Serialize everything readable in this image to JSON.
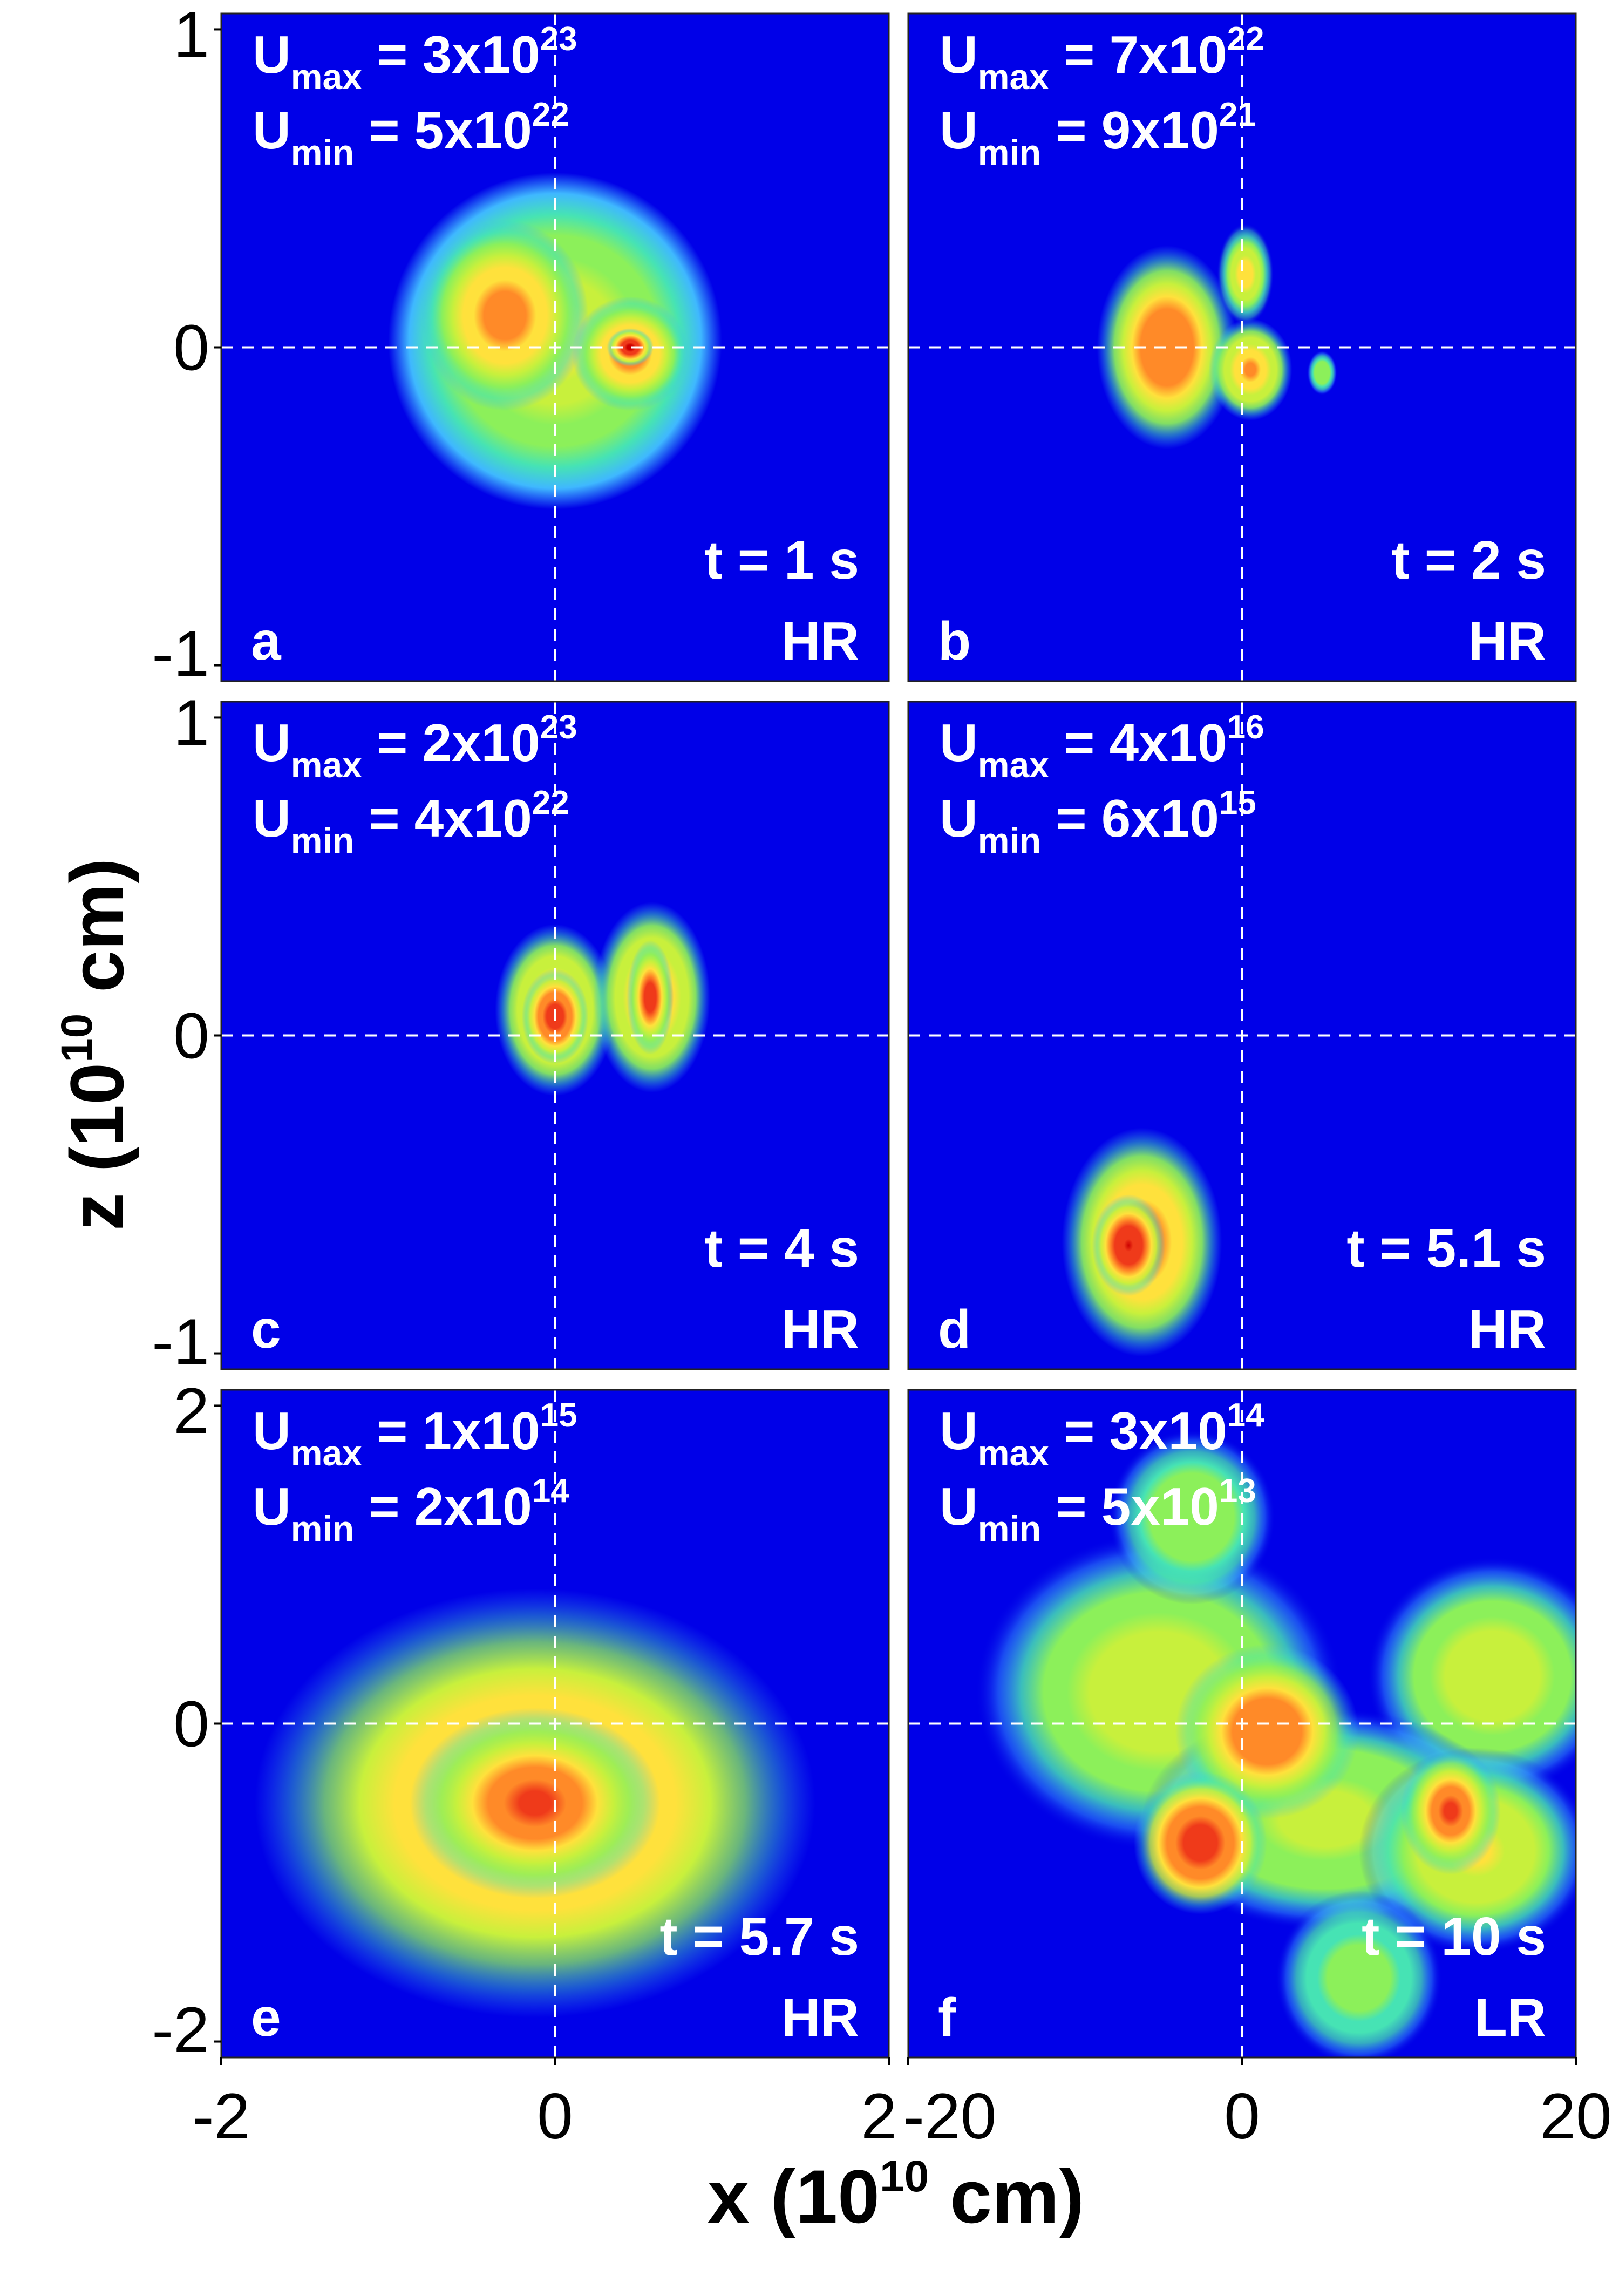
{
  "figure": {
    "xlabel": {
      "main": "x (10",
      "exp": "10",
      "unit": " cm)"
    },
    "ylabel": {
      "main": "z (10",
      "exp": "10",
      "unit": " cm)"
    }
  },
  "colors": {
    "background": "#0000e8",
    "colormap": [
      "#0000e8",
      "#3fb8ff",
      "#46e3b4",
      "#8cf05a",
      "#c8f03c",
      "#ffe13c",
      "#ff8a28",
      "#ef3a1a",
      "#cc0000"
    ],
    "overlay_text": "#ffffff",
    "guide_lines": "#ffffff"
  },
  "chart_data": [
    {
      "type": "heatmap",
      "panel": "a",
      "time": "t = 1 s",
      "resolution": "HR",
      "umax": {
        "mantissa": "3x10",
        "exp": "23"
      },
      "umin": {
        "mantissa": "5x10",
        "exp": "22"
      },
      "xlim": [
        -2,
        2
      ],
      "ylim": [
        -1.05,
        1.05
      ],
      "xticks": [],
      "yticks": [
        "1",
        "0",
        "-1"
      ],
      "features": [
        {
          "x": 0.0,
          "z": 0.02,
          "rx": 1.0,
          "rz": 0.53,
          "level": 0.66,
          "softness": 0.1
        },
        {
          "x": -0.3,
          "z": 0.1,
          "rx": 0.5,
          "rz": 0.3,
          "level": 0.8,
          "softness": 0.35
        },
        {
          "x": 0.45,
          "z": -0.02,
          "rx": 0.35,
          "rz": 0.18,
          "level": 0.78,
          "softness": 0.4
        },
        {
          "x": 0.45,
          "z": 0.0,
          "rx": 0.14,
          "rz": 0.06,
          "level": 0.97,
          "softness": 0.4
        }
      ]
    },
    {
      "type": "heatmap",
      "panel": "b",
      "time": "t = 2 s",
      "resolution": "HR",
      "umax": {
        "mantissa": "7x10",
        "exp": "22"
      },
      "umin": {
        "mantissa": "9x10",
        "exp": "21"
      },
      "xlim": [
        -2,
        2
      ],
      "ylim": [
        -1.05,
        1.05
      ],
      "xticks": [],
      "yticks": [],
      "features": [
        {
          "x": -0.45,
          "z": 0.0,
          "rx": 0.42,
          "rz": 0.32,
          "level": 0.8,
          "softness": 0.45
        },
        {
          "x": 0.05,
          "z": -0.07,
          "rx": 0.25,
          "rz": 0.16,
          "level": 0.72,
          "softness": 0.45
        },
        {
          "x": 0.02,
          "z": 0.23,
          "rx": 0.17,
          "rz": 0.16,
          "level": 0.62,
          "softness": 0.5
        },
        {
          "x": 0.48,
          "z": -0.08,
          "rx": 0.09,
          "rz": 0.07,
          "level": 0.4,
          "softness": 0.55
        }
      ]
    },
    {
      "type": "heatmap",
      "panel": "c",
      "time": "t = 4 s",
      "resolution": "HR",
      "umax": {
        "mantissa": "2x10",
        "exp": "23"
      },
      "umin": {
        "mantissa": "4x10",
        "exp": "22"
      },
      "xlim": [
        -2,
        2
      ],
      "ylim": [
        -1.05,
        1.05
      ],
      "xticks": [],
      "yticks": [
        "1",
        "0",
        "-1"
      ],
      "features": [
        {
          "x": 0.0,
          "z": 0.08,
          "rx": 0.36,
          "rz": 0.27,
          "level": 0.74,
          "softness": 0.45
        },
        {
          "x": 0.58,
          "z": 0.12,
          "rx": 0.35,
          "rz": 0.3,
          "level": 0.74,
          "softness": 0.45
        },
        {
          "x": 0.0,
          "z": 0.06,
          "rx": 0.2,
          "rz": 0.15,
          "level": 0.92,
          "softness": 0.45
        },
        {
          "x": 0.57,
          "z": 0.12,
          "rx": 0.14,
          "rz": 0.18,
          "level": 0.88,
          "softness": 0.45
        }
      ]
    },
    {
      "type": "heatmap",
      "panel": "d",
      "time": "t = 5.1 s",
      "resolution": "HR",
      "umax": {
        "mantissa": "4x10",
        "exp": "16"
      },
      "umin": {
        "mantissa": "6x10",
        "exp": "15"
      },
      "xlim": [
        -2,
        2
      ],
      "ylim": [
        -1.05,
        1.05
      ],
      "xticks": [],
      "yticks": [],
      "features": [
        {
          "x": -0.6,
          "z": -0.65,
          "rx": 0.48,
          "rz": 0.36,
          "level": 0.76,
          "softness": 0.45
        },
        {
          "x": -0.68,
          "z": -0.66,
          "rx": 0.22,
          "rz": 0.16,
          "level": 0.95,
          "softness": 0.45
        }
      ]
    },
    {
      "type": "heatmap",
      "panel": "e",
      "time": "t = 5.7 s",
      "resolution": "HR",
      "umax": {
        "mantissa": "1x10",
        "exp": "15"
      },
      "umin": {
        "mantissa": "2x10",
        "exp": "14"
      },
      "xlim": [
        -2,
        2
      ],
      "ylim": [
        -2.1,
        2.1
      ],
      "xticks": [
        "-2",
        "0",
        "2"
      ],
      "yticks": [
        "2",
        "0",
        "-2"
      ],
      "features": [
        {
          "x": -0.12,
          "z": -0.5,
          "rx": 1.68,
          "rz": 1.35,
          "level": 0.72,
          "softness": 0.55
        },
        {
          "x": -0.12,
          "z": -0.5,
          "rx": 0.75,
          "rz": 0.6,
          "level": 0.86,
          "softness": 0.5
        }
      ]
    },
    {
      "type": "heatmap",
      "panel": "f",
      "time": "t = 10 s",
      "resolution": "LR",
      "umax": {
        "mantissa": "3x10",
        "exp": "14"
      },
      "umin": {
        "mantissa": "5x10",
        "exp": "13"
      },
      "xlim": [
        -20,
        20
      ],
      "ylim": [
        -2.1,
        2.1
      ],
      "xticks": [
        "-20",
        "0",
        "20"
      ],
      "yticks": [],
      "features": [
        {
          "x": -5.0,
          "z": 0.2,
          "rx": 11.0,
          "rz": 1.0,
          "level": 0.55,
          "softness": 0.5
        },
        {
          "x": 15.0,
          "z": 0.3,
          "rx": 7.5,
          "rz": 0.75,
          "level": 0.55,
          "softness": 0.5
        },
        {
          "x": 5.0,
          "z": -0.6,
          "rx": 11.0,
          "rz": 0.7,
          "level": 0.5,
          "softness": 0.5
        },
        {
          "x": 14.0,
          "z": -0.8,
          "rx": 7.0,
          "rz": 0.65,
          "level": 0.58,
          "softness": 0.5
        },
        {
          "x": 7.0,
          "z": -1.6,
          "rx": 5.0,
          "rz": 0.55,
          "level": 0.38,
          "softness": 0.55
        },
        {
          "x": -3.0,
          "z": 1.3,
          "rx": 5.0,
          "rz": 0.55,
          "level": 0.42,
          "softness": 0.55
        },
        {
          "x": 1.5,
          "z": -0.05,
          "rx": 5.5,
          "rz": 0.55,
          "level": 0.8,
          "softness": 0.5
        },
        {
          "x": -2.5,
          "z": -0.75,
          "rx": 4.0,
          "rz": 0.45,
          "level": 0.92,
          "softness": 0.5
        },
        {
          "x": 12.5,
          "z": -0.55,
          "rx": 3.0,
          "rz": 0.4,
          "level": 0.85,
          "softness": 0.5
        }
      ]
    }
  ]
}
